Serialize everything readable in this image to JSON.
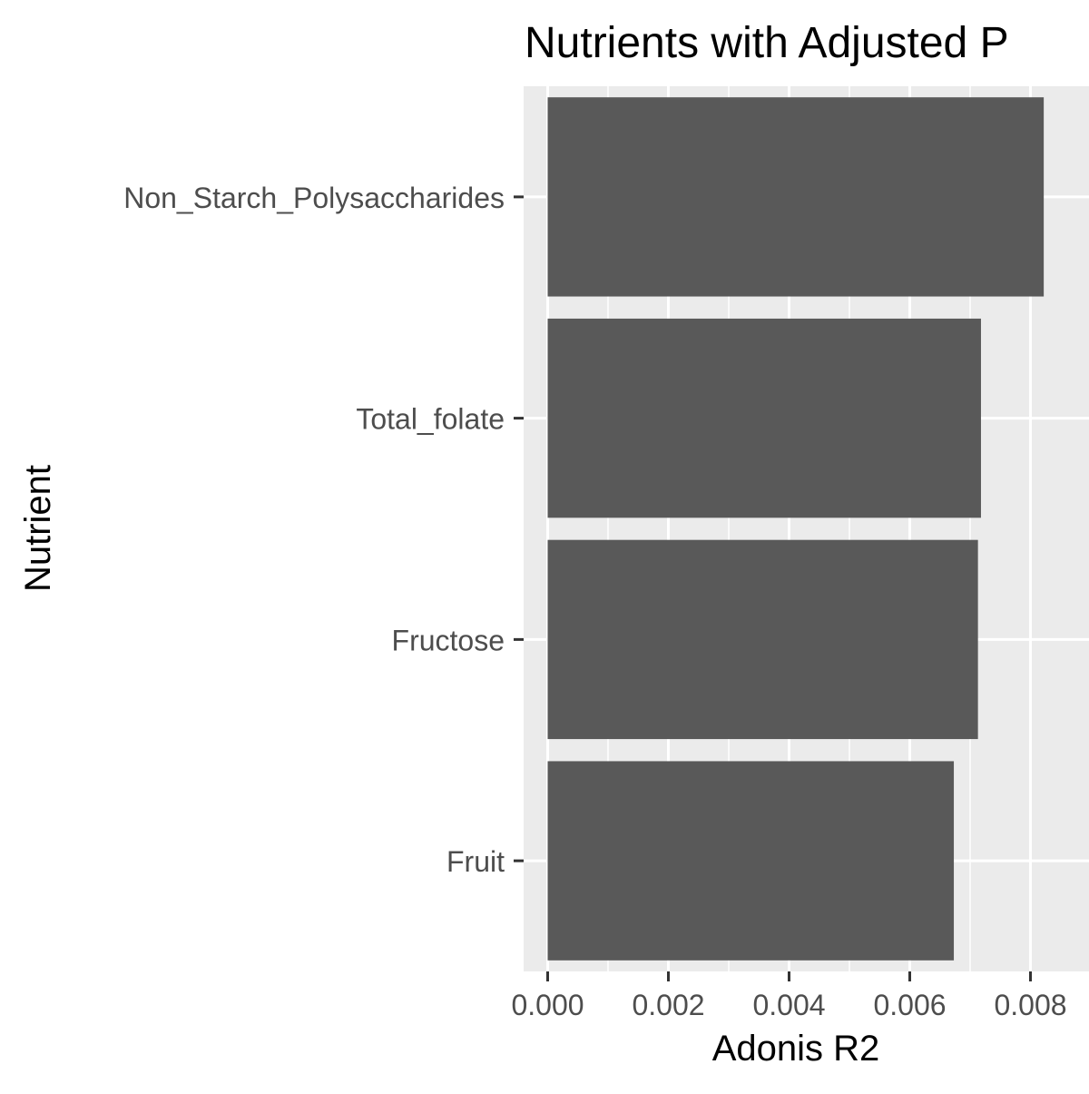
{
  "chart_data": {
    "type": "bar",
    "orientation": "horizontal",
    "title": "Nutrients with Adjusted P",
    "xlabel": "Adonis R2",
    "ylabel": "Nutrient",
    "categories": [
      "Non_Starch_Polysaccharides",
      "Total_folate",
      "Fructose",
      "Fruit"
    ],
    "values": [
      0.00822,
      0.00718,
      0.00713,
      0.00673
    ],
    "xlim": [
      -0.0004,
      0.0082
    ],
    "xticks": [
      "0.000",
      "0.002",
      "0.004",
      "0.006",
      "0.008"
    ],
    "grid": true,
    "legend": "none",
    "colors": {
      "bar": "#595959",
      "panel": "#ebebeb",
      "grid": "#ffffff",
      "text": "#000000",
      "tick_text": "#4d4d4d",
      "tick": "#333333"
    }
  }
}
